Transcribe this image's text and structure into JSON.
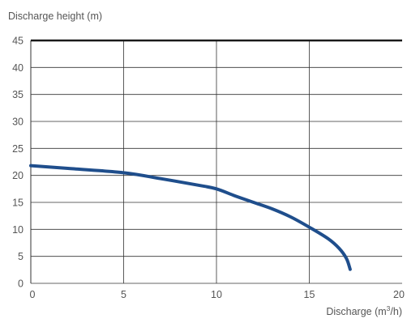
{
  "chart_data": {
    "type": "line",
    "title": "",
    "ylabel": "Discharge height (m)",
    "xlabel_prefix": "Discharge (m",
    "xlabel_superscript": "3",
    "xlabel_suffix": "/h)",
    "xlim": [
      0,
      20
    ],
    "ylim": [
      0,
      45
    ],
    "x_ticks": [
      "0",
      "5",
      "10",
      "15",
      "20"
    ],
    "y_ticks": [
      "0",
      "5",
      "10",
      "15",
      "20",
      "25",
      "30",
      "35",
      "40",
      "45"
    ],
    "grid": true,
    "series": [
      {
        "color": "#1f4e8c",
        "x": [
          0,
          2,
          5,
          7,
          9,
          10,
          11,
          12,
          13,
          14,
          15,
          16,
          16.6,
          17.0,
          17.2
        ],
        "y": [
          21.8,
          21.3,
          20.5,
          19.4,
          18.2,
          17.5,
          16.2,
          15.0,
          13.8,
          12.3,
          10.4,
          8.3,
          6.5,
          4.6,
          2.6
        ]
      }
    ]
  }
}
